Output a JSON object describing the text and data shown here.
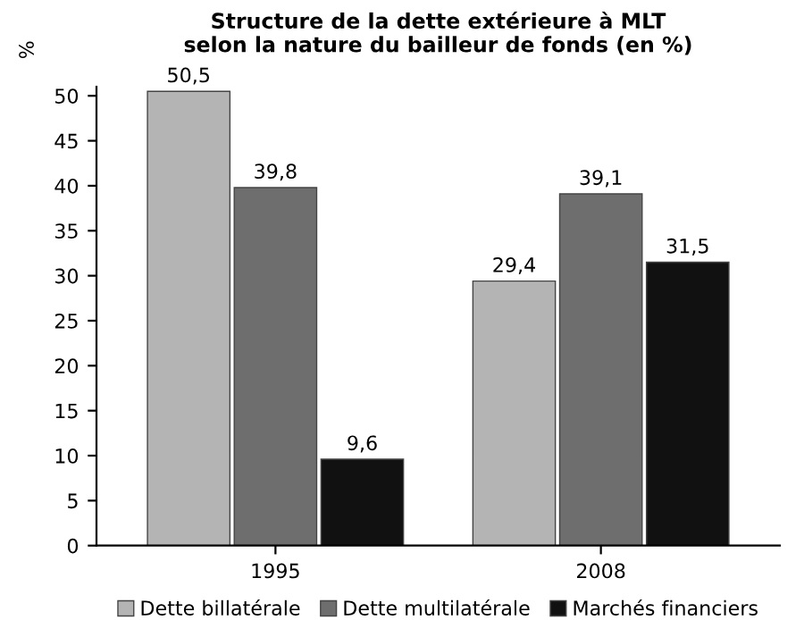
{
  "chart_data": {
    "type": "bar",
    "title": "Structure de la dette extérieure à MLT\nselon la nature du bailleur de fonds (en %)",
    "ylabel": "%",
    "categories": [
      "1995",
      "2008"
    ],
    "series": [
      {
        "name": "Dette billatérale",
        "color": "#b4b4b4",
        "values": [
          50.5,
          29.4
        ],
        "value_labels": [
          "50,5",
          "29,4"
        ]
      },
      {
        "name": "Dette multilatérale",
        "color": "#6e6e6e",
        "values": [
          39.8,
          39.1
        ],
        "value_labels": [
          "39,8",
          "39,1"
        ]
      },
      {
        "name": "Marchés financiers",
        "color": "#111111",
        "values": [
          9.6,
          31.5
        ],
        "value_labels": [
          "9,6",
          "31,5"
        ]
      }
    ],
    "ylim": [
      0,
      51
    ],
    "yticks": [
      0,
      5,
      10,
      15,
      20,
      25,
      30,
      35,
      40,
      45,
      50
    ],
    "grid": false,
    "legend": "bottom"
  }
}
